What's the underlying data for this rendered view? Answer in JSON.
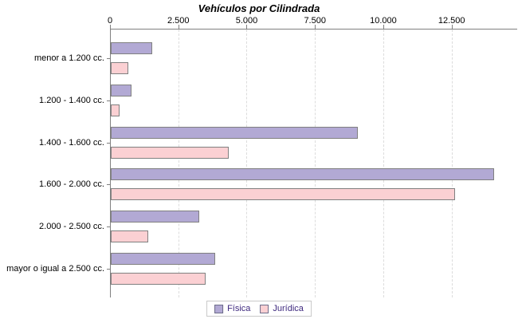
{
  "chart_data": {
    "type": "bar",
    "orientation": "horizontal",
    "title": "Vehículos por Cilindrada",
    "categories": [
      "menor a 1.200 cc.",
      "1.200 - 1.400 cc.",
      "1.400 - 1.600 cc.",
      "1.600 - 2.000 cc.",
      "2.000 - 2.500 cc.",
      "mayor o igual a 2.500 cc."
    ],
    "series": [
      {
        "name": "Física",
        "color": "#b2a9d4",
        "values": [
          1530,
          770,
          9030,
          14030,
          3240,
          3810
        ]
      },
      {
        "name": "Jurídica",
        "color": "#fbd0d3",
        "values": [
          650,
          310,
          4330,
          12600,
          1380,
          3460
        ]
      }
    ],
    "x_axis": {
      "ticks": [
        0,
        2500,
        5000,
        7500,
        10000,
        12500
      ],
      "tick_labels": [
        "0",
        "2.500",
        "5.000",
        "7.500",
        "10.000",
        "12.500"
      ],
      "min": 0,
      "max": 14900
    },
    "grid": "vertical-dashed",
    "legend_position": "bottom",
    "colors": {
      "bar_border": "#808080",
      "axis": "#808080",
      "gridline": "#dcdcdc",
      "legend_text": "#3f2a7f",
      "title_text": "#000000"
    }
  }
}
